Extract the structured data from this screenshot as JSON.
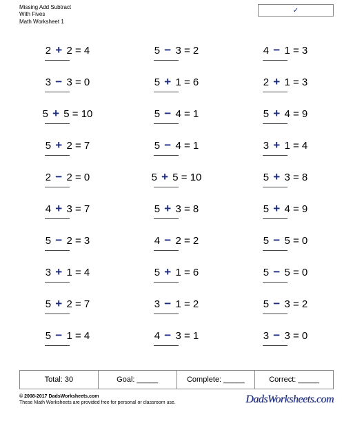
{
  "header": {
    "line1": "Missing Add Subtract",
    "line2": "With Fives",
    "line3": "Math Worksheet 1"
  },
  "name_box": {
    "mark": "✓"
  },
  "op_color": "#1a2a80",
  "columns": [
    [
      {
        "a": "2",
        "op": "+",
        "b": "2",
        "r": "4"
      },
      {
        "a": "3",
        "op": "−",
        "b": "3",
        "r": "0"
      },
      {
        "a": "5",
        "op": "+",
        "b": "5",
        "r": "10"
      },
      {
        "a": "5",
        "op": "+",
        "b": "2",
        "r": "7"
      },
      {
        "a": "2",
        "op": "−",
        "b": "2",
        "r": "0"
      },
      {
        "a": "4",
        "op": "+",
        "b": "3",
        "r": "7"
      },
      {
        "a": "5",
        "op": "−",
        "b": "2",
        "r": "3"
      },
      {
        "a": "3",
        "op": "+",
        "b": "1",
        "r": "4"
      },
      {
        "a": "5",
        "op": "+",
        "b": "2",
        "r": "7"
      },
      {
        "a": "5",
        "op": "−",
        "b": "1",
        "r": "4"
      }
    ],
    [
      {
        "a": "5",
        "op": "−",
        "b": "3",
        "r": "2"
      },
      {
        "a": "5",
        "op": "+",
        "b": "1",
        "r": "6"
      },
      {
        "a": "5",
        "op": "−",
        "b": "4",
        "r": "1"
      },
      {
        "a": "5",
        "op": "−",
        "b": "4",
        "r": "1"
      },
      {
        "a": "5",
        "op": "+",
        "b": "5",
        "r": "10"
      },
      {
        "a": "5",
        "op": "+",
        "b": "3",
        "r": "8"
      },
      {
        "a": "4",
        "op": "−",
        "b": "2",
        "r": "2"
      },
      {
        "a": "5",
        "op": "+",
        "b": "1",
        "r": "6"
      },
      {
        "a": "3",
        "op": "−",
        "b": "1",
        "r": "2"
      },
      {
        "a": "4",
        "op": "−",
        "b": "3",
        "r": "1"
      }
    ],
    [
      {
        "a": "4",
        "op": "−",
        "b": "1",
        "r": "3"
      },
      {
        "a": "2",
        "op": "+",
        "b": "1",
        "r": "3"
      },
      {
        "a": "5",
        "op": "+",
        "b": "4",
        "r": "9"
      },
      {
        "a": "3",
        "op": "+",
        "b": "1",
        "r": "4"
      },
      {
        "a": "5",
        "op": "+",
        "b": "3",
        "r": "8"
      },
      {
        "a": "5",
        "op": "+",
        "b": "4",
        "r": "9"
      },
      {
        "a": "5",
        "op": "−",
        "b": "5",
        "r": "0"
      },
      {
        "a": "5",
        "op": "−",
        "b": "5",
        "r": "0"
      },
      {
        "a": "5",
        "op": "−",
        "b": "3",
        "r": "2"
      },
      {
        "a": "3",
        "op": "−",
        "b": "3",
        "r": "0"
      }
    ]
  ],
  "summary": {
    "total_label": "Total:",
    "total_value": "30",
    "goal_label": "Goal: _____",
    "complete_label": "Complete: _____",
    "correct_label": "Correct: _____"
  },
  "footer": {
    "copyright": "© 2008-2017 DadsWorksheets.com",
    "note": "These Math Worksheets are provided free for personal or classroom use.",
    "logo": "DadsWorksheets.com"
  }
}
